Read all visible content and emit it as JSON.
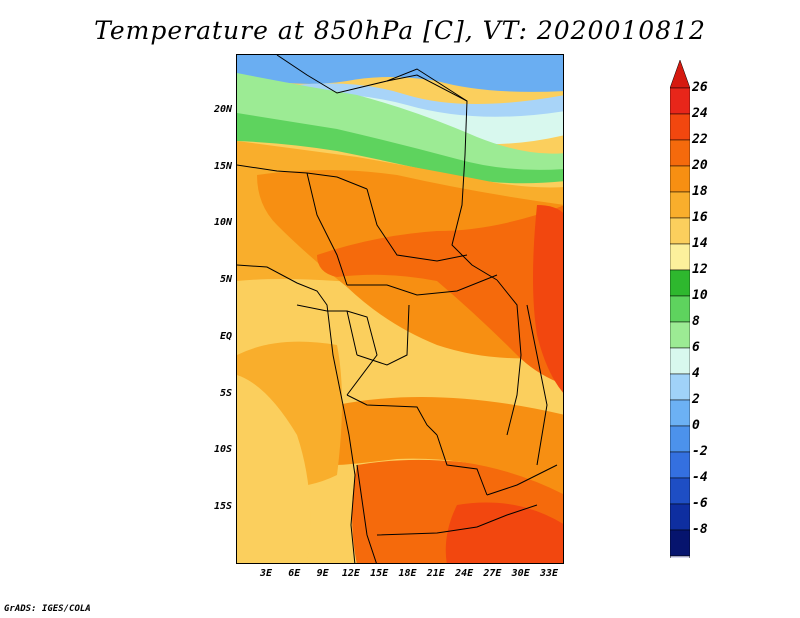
{
  "title": "Temperature at 850hPa [C], VT: 2020010812",
  "credit": "GrADS: IGES/COLA",
  "lat_labels": [
    "20N",
    "15N",
    "10N",
    "5N",
    "EQ",
    "5S",
    "10S",
    "15S"
  ],
  "lon_labels": [
    "3E",
    "6E",
    "9E",
    "12E",
    "15E",
    "18E",
    "21E",
    "24E",
    "27E",
    "30E",
    "33E"
  ],
  "colorbar": {
    "labels": [
      "26",
      "24",
      "22",
      "20",
      "18",
      "16",
      "14",
      "12",
      "10",
      "8",
      "6",
      "4",
      "2",
      "0",
      "-2",
      "-4",
      "-6",
      "-8"
    ],
    "colors": [
      "#e8261a",
      "#f2470f",
      "#f56a0c",
      "#f78f12",
      "#f9ae2c",
      "#fbcf5d",
      "#fcf09c",
      "#2eb82e",
      "#5ed35e",
      "#9ceb94",
      "#d8f8ee",
      "#a0d2f8",
      "#6cb1f4",
      "#4c92ec",
      "#3470e0",
      "#1e4ec4",
      "#0e2ea0",
      "#06146e"
    ],
    "over_color": "#d51a10",
    "under_color": "#dcdcf4"
  },
  "map_colors": {
    "blue": "#6aaef2",
    "lightblue": "#a8d4f8",
    "pale": "#d8f8ee",
    "lightgreen": "#9ceb94",
    "green": "#5ed35e",
    "darkgreen": "#2eb82e",
    "yellow": "#fbcf5d",
    "lightorange": "#f9ae2c",
    "orange": "#f78f12",
    "darkorange": "#f56a0c",
    "red": "#f2470f"
  }
}
